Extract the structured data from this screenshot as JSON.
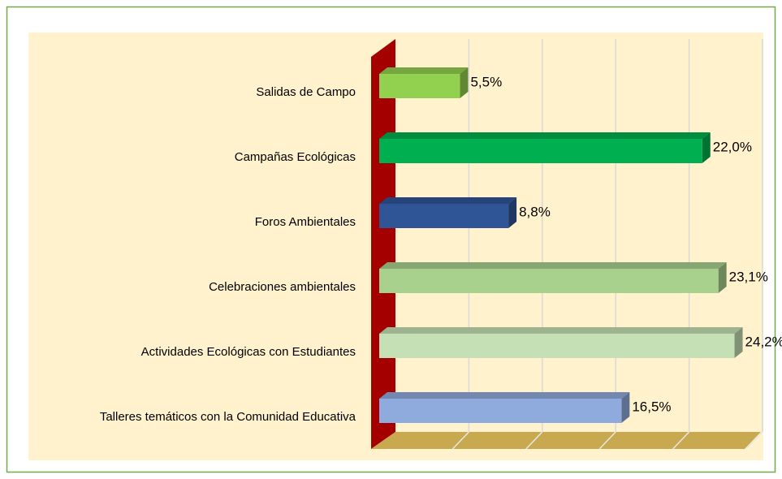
{
  "chart_data": {
    "type": "bar",
    "orientation": "horizontal",
    "categories": [
      "Salidas de Campo",
      "Campañas Ecológicas",
      "Foros Ambientales",
      "Celebraciones ambientales",
      "Actividades Ecológicas con Estudiantes",
      "Talleres temáticos con la Comunidad Educativa"
    ],
    "values": [
      5.5,
      22.0,
      8.8,
      23.1,
      24.2,
      16.5
    ],
    "value_labels": [
      "5,5%",
      "22,0%",
      "8,8%",
      "23,1%",
      "24,2%",
      "16,5%"
    ],
    "colors": [
      "#92d050",
      "#00b050",
      "#2f5597",
      "#a9d18e",
      "#c5e0b4",
      "#8faadc"
    ],
    "xlim": [
      0,
      25
    ],
    "xticks": [
      0,
      5,
      10,
      15,
      20,
      25
    ],
    "grid": true
  }
}
